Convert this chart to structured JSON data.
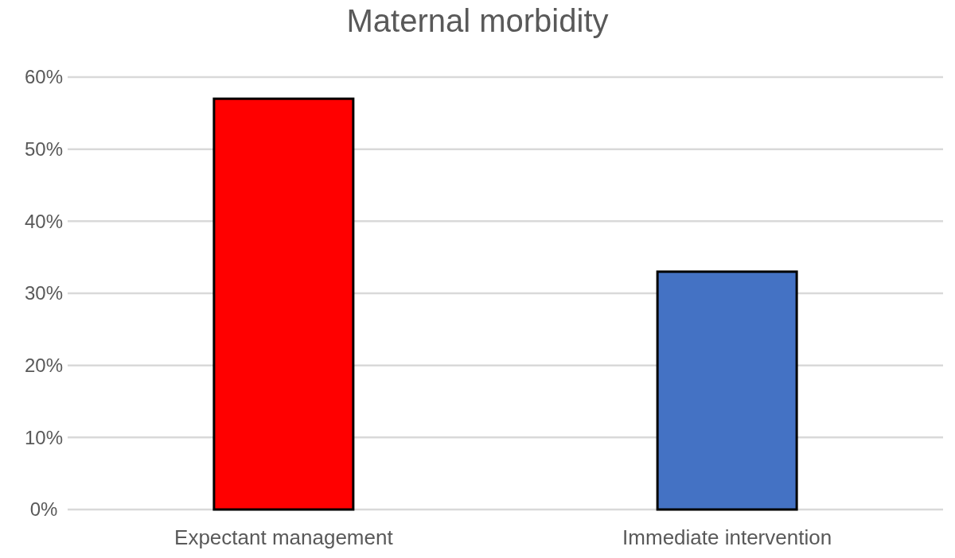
{
  "chart_data": {
    "type": "bar",
    "title": "Maternal morbidity",
    "categories": [
      "Expectant management",
      "Immediate intervention"
    ],
    "values": [
      57,
      33
    ],
    "colors": [
      "#ff0000",
      "#4472c4"
    ],
    "ylim": [
      0,
      60
    ],
    "yticks": [
      {
        "value": 0,
        "label": "0%"
      },
      {
        "value": 10,
        "label": "10%"
      },
      {
        "value": 20,
        "label": "20%"
      },
      {
        "value": 30,
        "label": "30%"
      },
      {
        "value": 40,
        "label": "40%"
      },
      {
        "value": 50,
        "label": "50%"
      },
      {
        "value": 60,
        "label": "60%"
      }
    ],
    "grid": "y"
  }
}
